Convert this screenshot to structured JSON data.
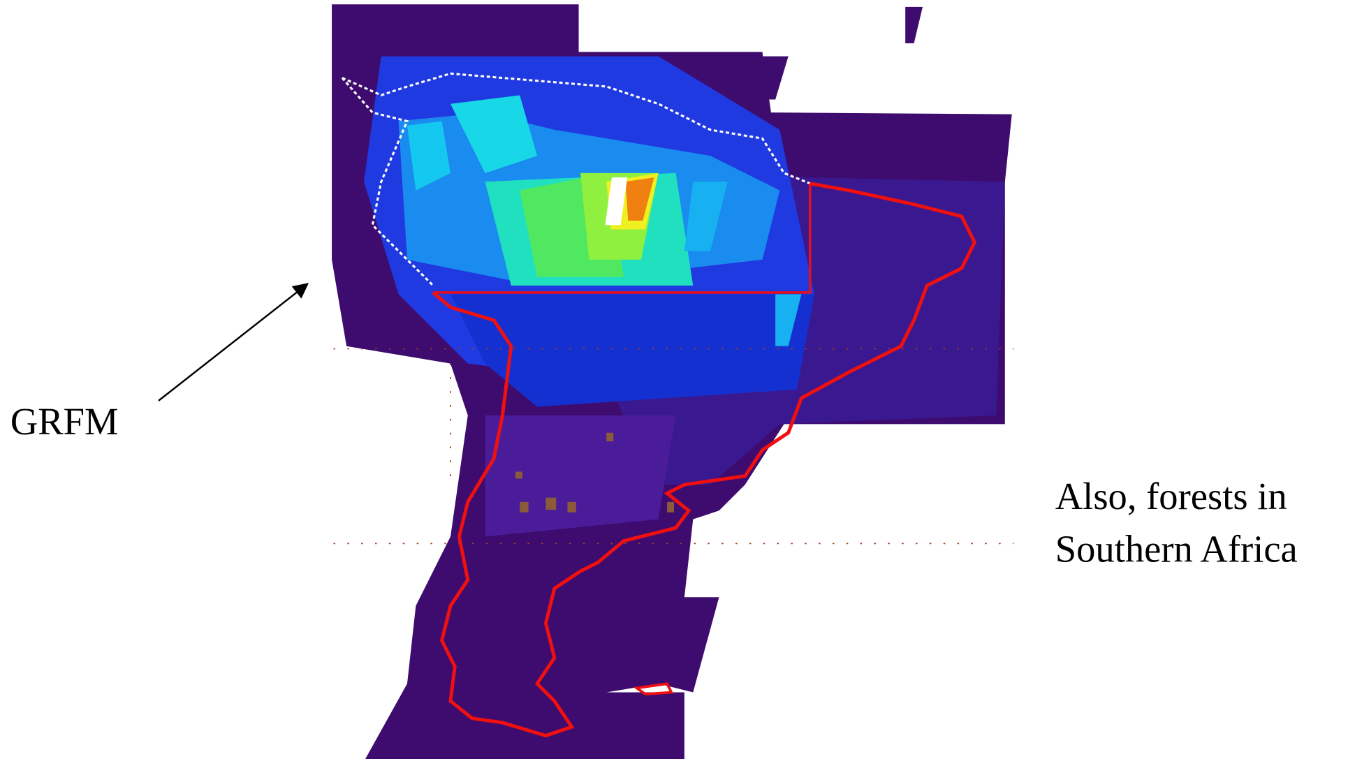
{
  "annotations": {
    "arrow_label": "GRFM",
    "side_note": [
      "Also, forests in",
      "Southern Africa"
    ]
  }
}
